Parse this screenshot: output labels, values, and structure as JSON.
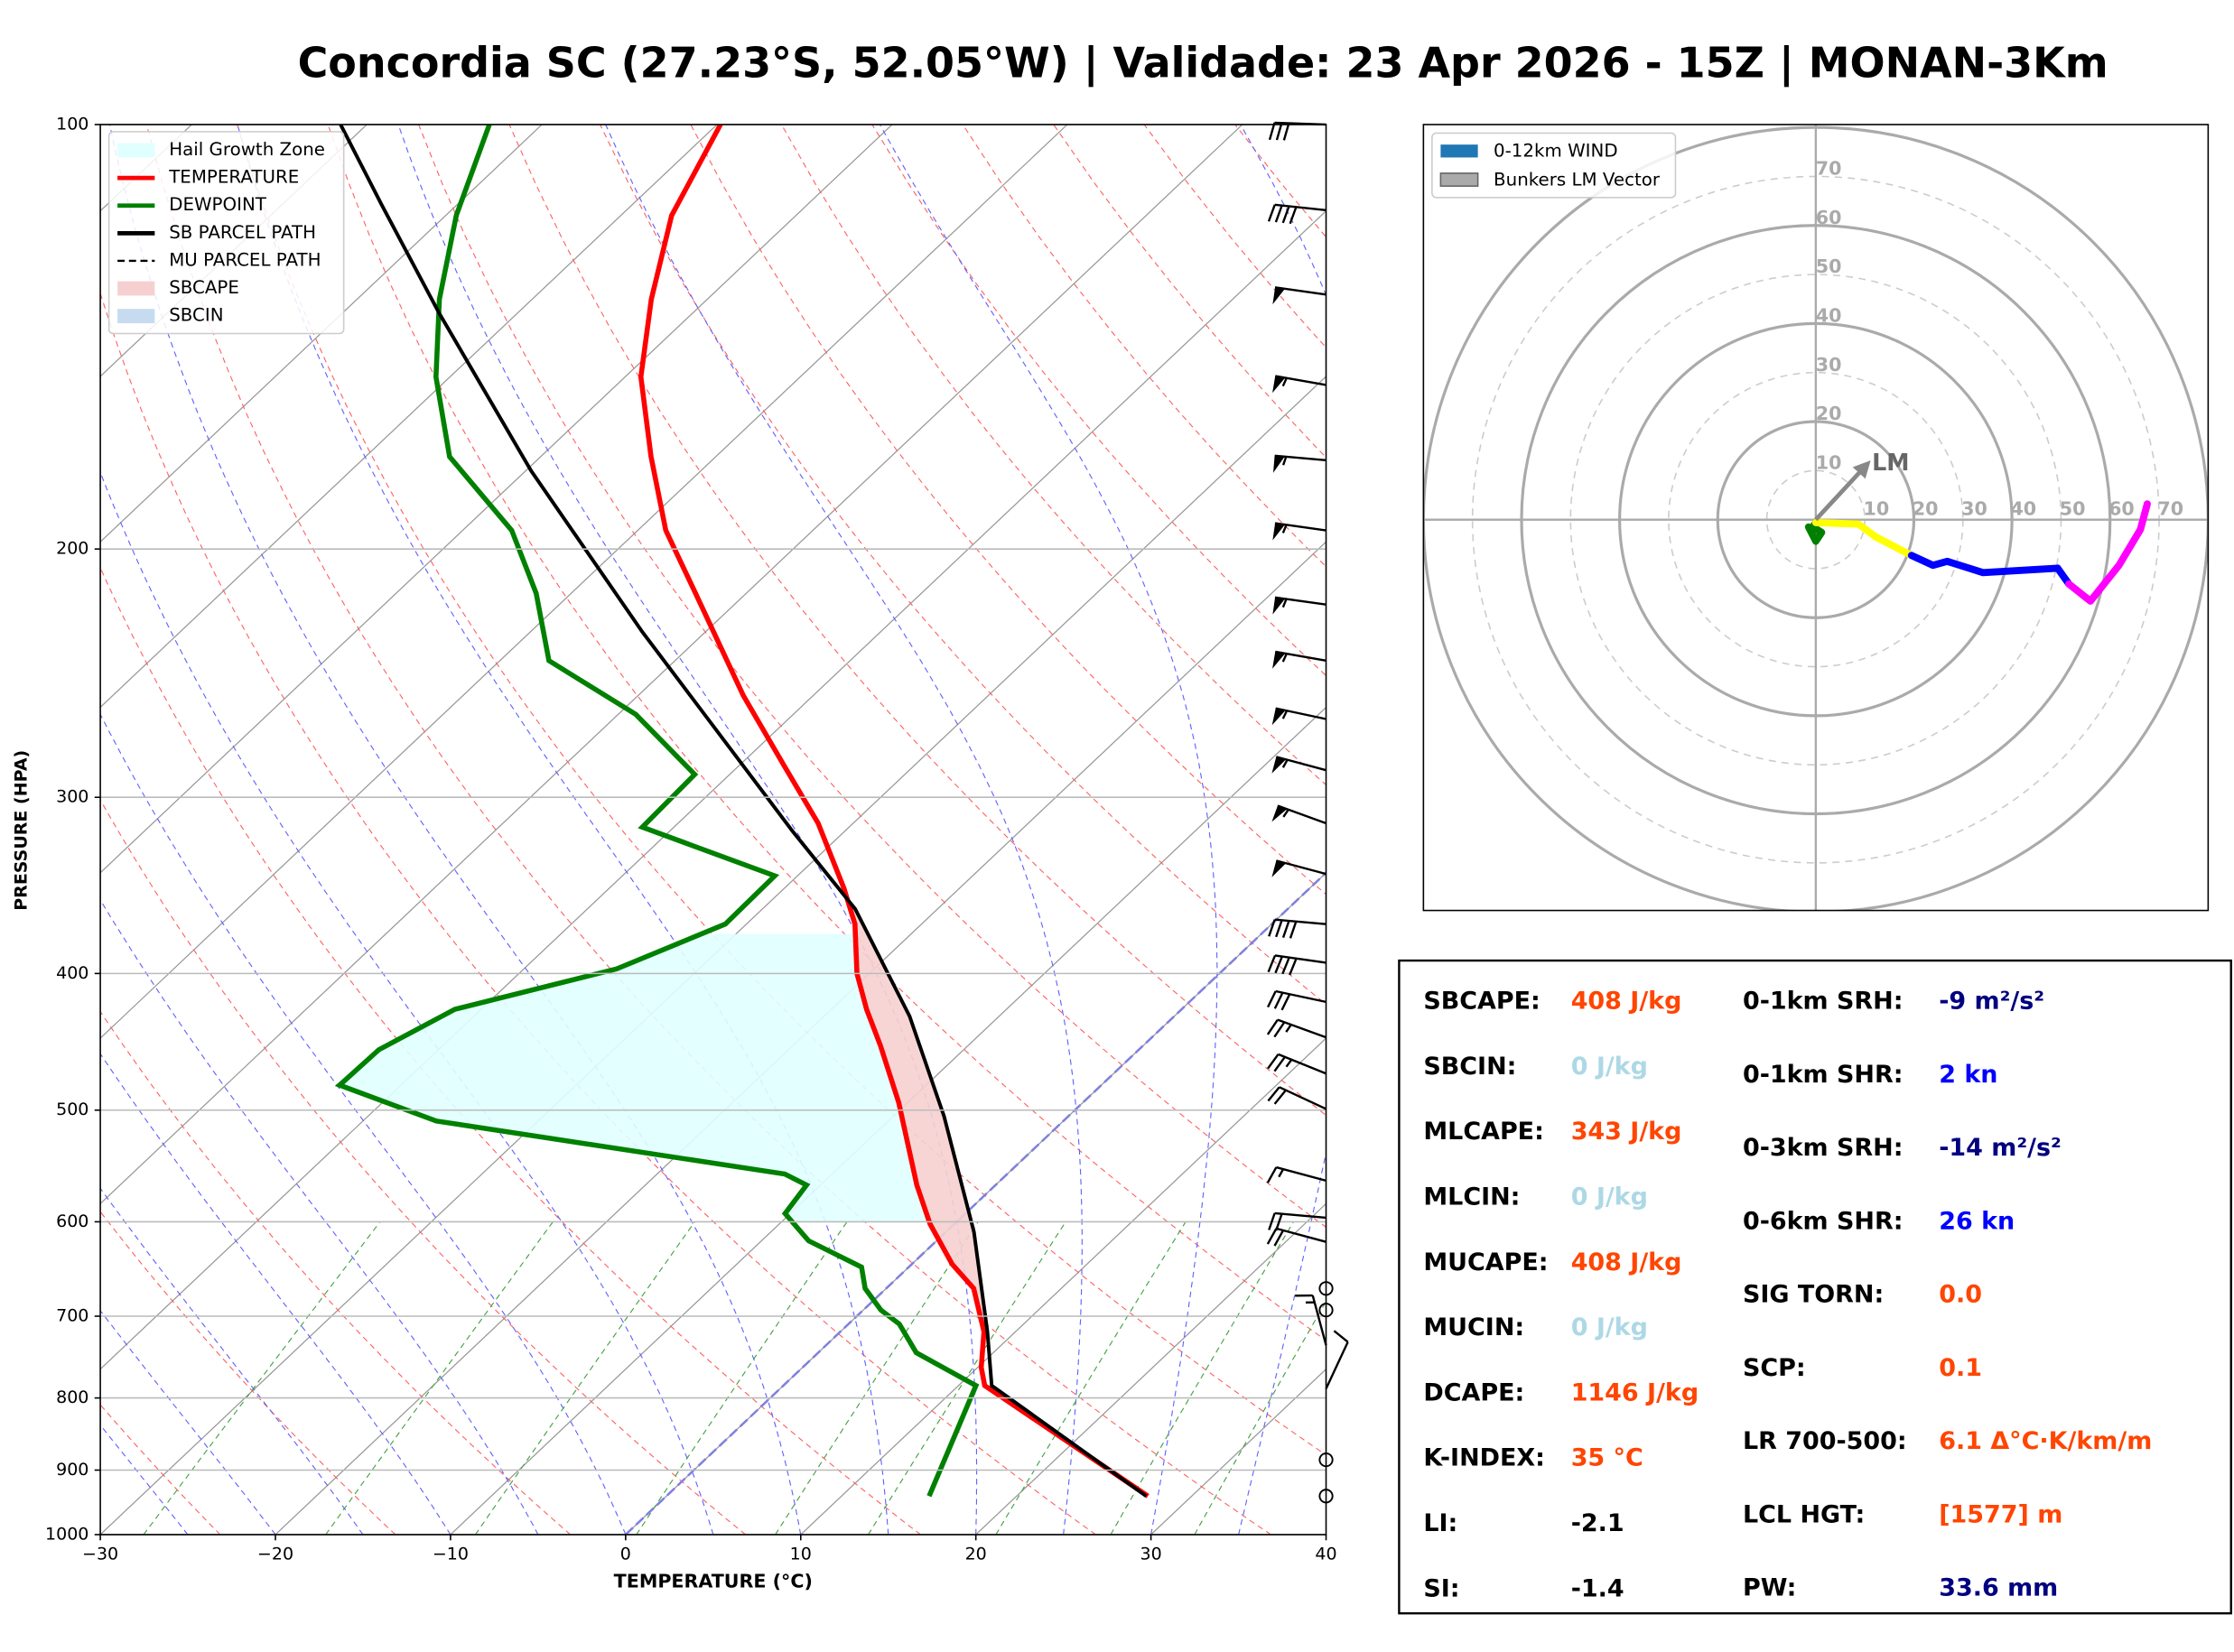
{
  "title": "Concordia SC (27.23°S, 52.05°W) | Validade: 23 Apr 2026 - 15Z | MONAN-3Km",
  "chart_data": [
    {
      "type": "skewt",
      "xlabel": "TEMPERATURE (°C)",
      "ylabel": "PRESSURE (HPA)",
      "xlim": [
        -30,
        40
      ],
      "ylim": [
        1000,
        100
      ],
      "log_y": true,
      "grid": true,
      "xticks": [
        {
          "value": -30,
          "label": "−30"
        },
        {
          "value": -20,
          "label": "−20"
        },
        {
          "value": -10,
          "label": "−10"
        },
        0,
        10,
        20,
        30,
        40
      ],
      "yticks": [
        100,
        200,
        300,
        400,
        500,
        600,
        700,
        800,
        900,
        1000
      ],
      "series": [
        {
          "name": "TEMPERATURE",
          "color": "#ff0000",
          "pressure": [
            939,
            784,
            761,
            718,
            669,
            643,
            602,
            565,
            494,
            450,
            424,
            400,
            369,
            348,
            313,
            285,
            254,
            215,
            194,
            172,
            151,
            133,
            116,
            100
          ],
          "values": [
            27.5,
            11.5,
            10.2,
            8.2,
            5.0,
            2.3,
            -1.4,
            -4.5,
            -10.5,
            -15.0,
            -18.0,
            -20.7,
            -23.8,
            -26.6,
            -32.0,
            -37.4,
            -44.0,
            -52.9,
            -58.4,
            -63.7,
            -69.1,
            -73.2,
            -77.1,
            -79.8
          ]
        },
        {
          "name": "DEWPOINT",
          "color": "#008000",
          "pressure": [
            939,
            784,
            743,
            709,
            693,
            669,
            646,
            619,
            592,
            565,
            555,
            509,
            480,
            453,
            424,
            397,
            369,
            341,
            315,
            289,
            262,
            240,
            215,
            194,
            172,
            151,
            133,
            116,
            100
          ],
          "values": [
            15.0,
            11.0,
            5.6,
            2.9,
            1.0,
            -1.2,
            -2.7,
            -7.3,
            -10.3,
            -10.8,
            -12.7,
            -35.8,
            -43.5,
            -43.4,
            -41.5,
            -34.7,
            -31.2,
            -31.3,
            -41.8,
            -42.0,
            -49.0,
            -57.2,
            -62.0,
            -67.2,
            -75.2,
            -80.8,
            -85.3,
            -89.4,
            -93.0
          ]
        },
        {
          "name": "SB PARCEL PATH",
          "color": "#000000",
          "pressure": [
            939,
            784,
            718,
            610,
            505,
            429,
            360,
            317,
            229,
            176,
            136,
            114,
            100
          ],
          "values": [
            27.4,
            11.9,
            8.4,
            1.6,
            -7.1,
            -15.1,
            -24.7,
            -33.0,
            -53.6,
            -69.7,
            -84.5,
            -94.3,
            -101.5
          ]
        },
        {
          "name": "MU PARCEL PATH",
          "color": "#000000",
          "dash": true
        }
      ],
      "shading": [
        {
          "name": "Hail Growth Zone",
          "color": "#e0ffff",
          "layer": [
            600,
            375
          ]
        },
        {
          "name": "SBCAPE",
          "color": "#f6d0d0",
          "layer": [
            718,
            360
          ]
        },
        {
          "name": "SBCIN",
          "color": "#c6dbef"
        }
      ],
      "wind": {
        "pressure": [
          100,
          115,
          132,
          153,
          173,
          194,
          219,
          240,
          264,
          287,
          313,
          340,
          369,
          393,
          419,
          444,
          471,
          499,
          561,
          596,
          620,
          669,
          693,
          734,
          788,
          885,
          939
        ],
        "speed": [
          30,
          40,
          50,
          55,
          55,
          55,
          55,
          55,
          55,
          55,
          55,
          50,
          40,
          40,
          30,
          25,
          25,
          20,
          15,
          20,
          20,
          0,
          0,
          15,
          10,
          0,
          0
        ],
        "direction": [
          272,
          276,
          278,
          280,
          275,
          278,
          278,
          280,
          282,
          285,
          290,
          285,
          275,
          278,
          282,
          290,
          292,
          295,
          285,
          275,
          285,
          0,
          0,
          345,
          25,
          0,
          0
        ]
      }
    },
    {
      "type": "hodograph",
      "rlim": [
        0,
        80
      ],
      "rticks": [
        10,
        20,
        30,
        40,
        50,
        60,
        70
      ],
      "series": [
        {
          "name": "0-12km WIND",
          "color": "#1f77b4",
          "segments": [
            {
              "color": "#008000",
              "u": [
                -1.5,
                0,
                1.2,
                -0.6,
                0
              ],
              "v": [
                -1.5,
                -4.4,
                -2.6,
                -1.5,
                -0.6
              ]
            },
            {
              "color": "#ffff00",
              "u": [
                0,
                8.7,
                12.2,
                19.5
              ],
              "v": [
                -0.6,
                -0.9,
                -3.5,
                -7.3
              ]
            },
            {
              "color": "#0000ff",
              "u": [
                19.5,
                23.9,
                26.8,
                34.1,
                49.3,
                51.6
              ],
              "v": [
                -7.3,
                -9.3,
                -8.5,
                -10.8,
                -9.9,
                -13.1
              ]
            },
            {
              "color": "#ff00ff",
              "u": [
                51.6,
                56,
                61.8,
                66.2,
                67.6
              ],
              "v": [
                -13.1,
                -16.6,
                -9.3,
                -2,
                3.2
              ]
            }
          ]
        }
      ],
      "storm_vector": {
        "name": "Bunkers LM Vector",
        "label": "LM",
        "color": "#888888",
        "u": 10,
        "v": 10.8
      }
    }
  ],
  "indices": {
    "left": [
      {
        "label": "SBCAPE:",
        "value": "408 J/kg",
        "color": "#ff4500"
      },
      {
        "label": "SBCIN:",
        "value": "0 J/kg",
        "color": "#add8e6"
      },
      {
        "label": "MLCAPE:",
        "value": "343 J/kg",
        "color": "#ff4500"
      },
      {
        "label": "MLCIN:",
        "value": "0 J/kg",
        "color": "#add8e6"
      },
      {
        "label": "MUCAPE:",
        "value": "408 J/kg",
        "color": "#ff4500"
      },
      {
        "label": "MUCIN:",
        "value": "0 J/kg",
        "color": "#add8e6"
      },
      {
        "label": "DCAPE:",
        "value": "1146 J/kg",
        "color": "#ff4500"
      },
      {
        "label": "K-INDEX:",
        "value": "35 °C",
        "color": "#ff4500"
      },
      {
        "label": "LI:",
        "value": "-2.1",
        "color": "#000000"
      },
      {
        "label": "SI:",
        "value": "-1.4",
        "color": "#000000"
      }
    ],
    "right": [
      {
        "label": "0-1km SRH:",
        "value": "-9 m²/s²",
        "color": "#000080"
      },
      {
        "label": "0-1km SHR:",
        "value": "2 kn",
        "color": "#0000ff"
      },
      {
        "label": "0-3km SRH:",
        "value": "-14 m²/s²",
        "color": "#000080"
      },
      {
        "label": "0-6km SHR:",
        "value": "26 kn",
        "color": "#0000ff"
      },
      {
        "label": "SIG TORN:",
        "value": "0.0",
        "color": "#ff4500"
      },
      {
        "label": "SCP:",
        "value": "0.1",
        "color": "#ff4500"
      },
      {
        "label": "LR 700-500:",
        "value": "6.1 Δ°C·K/km/m",
        "color": "#ff4500"
      },
      {
        "label": "LCL HGT:",
        "value": "[1577] m",
        "color": "#ff4500"
      },
      {
        "label": "PW:",
        "value": "33.6 mm",
        "color": "#000080"
      }
    ]
  }
}
